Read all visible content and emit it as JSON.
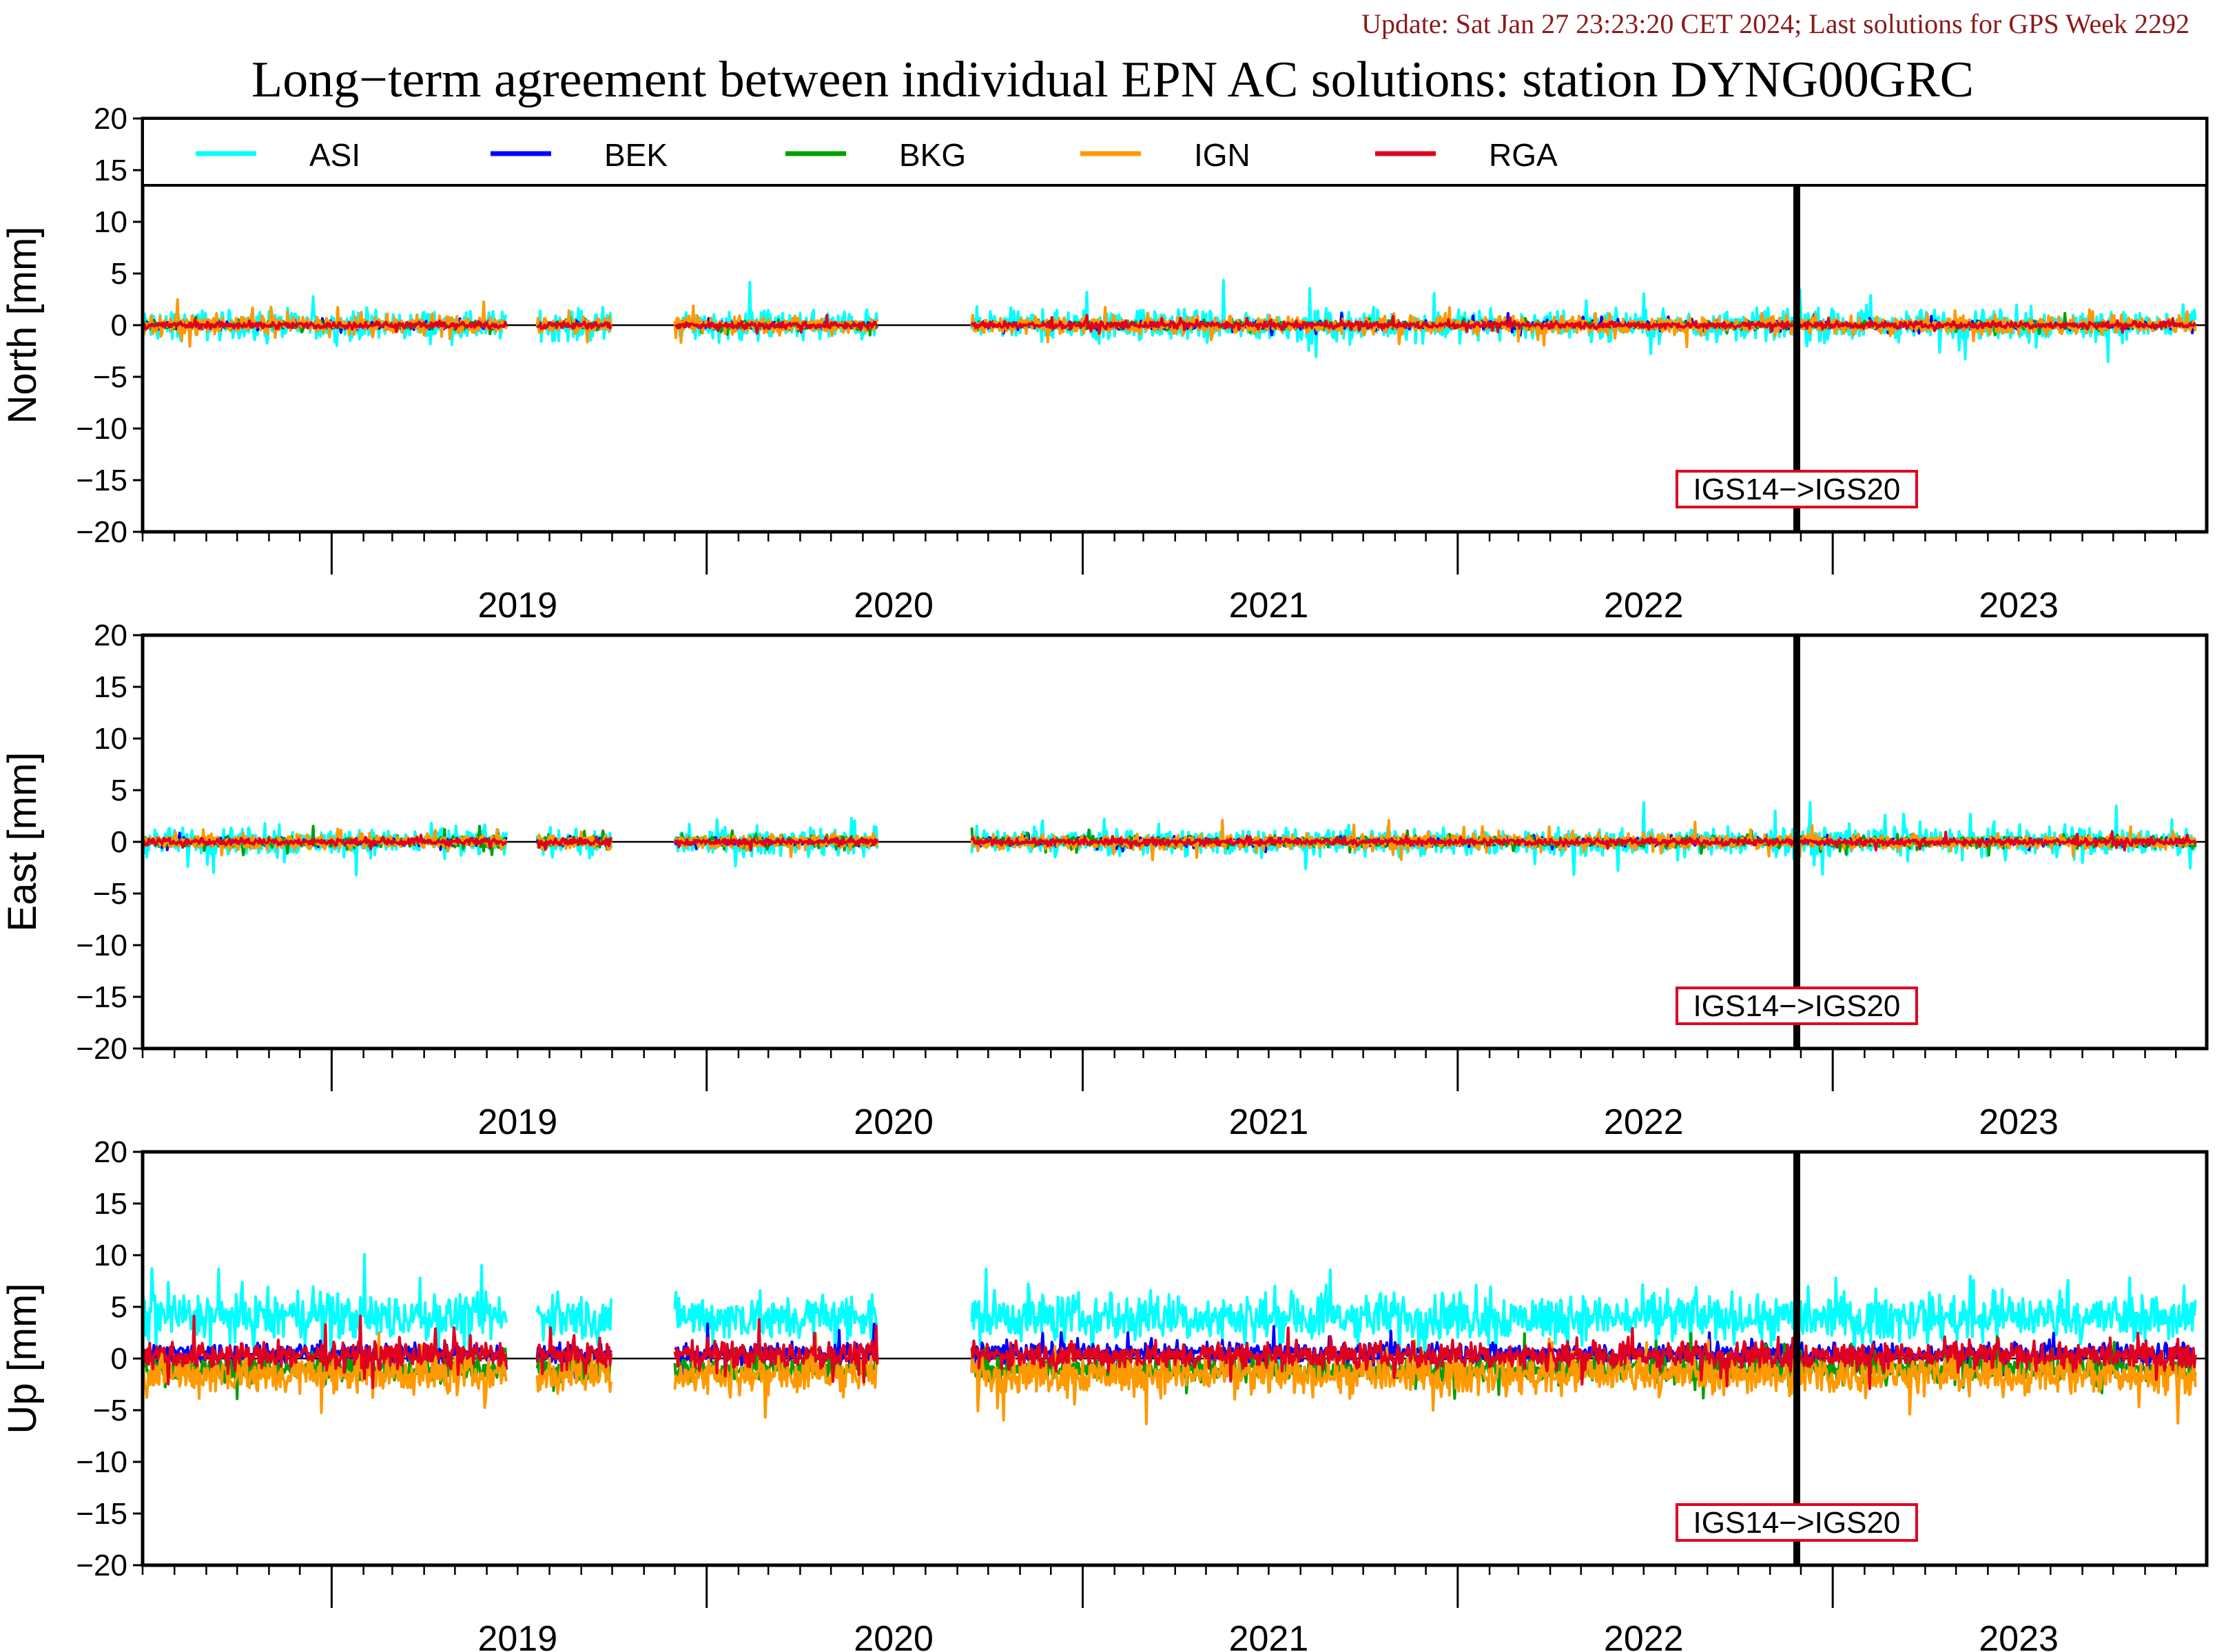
{
  "header": {
    "update": "Update: Sat Jan 27 23:23:20 CET 2024; Last solutions for GPS Week 2292",
    "title": "Long−term agreement between individual EPN AC solutions: station DYNG00GRC"
  },
  "chart_data": {
    "type": "line",
    "x_range": [
      "2018-07-01",
      "2023-12-31"
    ],
    "x_tick_labels": [
      "2019",
      "2020",
      "2021",
      "2022",
      "2023"
    ],
    "y_range": [
      -20,
      20
    ],
    "y_ticks": [
      -20,
      -15,
      -10,
      -5,
      0,
      5,
      10,
      15,
      20
    ],
    "y_tick_labels": [
      "−20",
      "−15",
      "−10",
      "−5",
      "0",
      "5",
      "10",
      "15",
      "20"
    ],
    "series": [
      {
        "name": "ASI",
        "color": "#00ffff"
      },
      {
        "name": "BEK",
        "color": "#0000ff"
      },
      {
        "name": "BKG",
        "color": "#00a000"
      },
      {
        "name": "IGN",
        "color": "#ff9900"
      },
      {
        "name": "RGA",
        "color": "#e00020"
      }
    ],
    "data_segments": [
      [
        "2018-07-01",
        "2019-06-20"
      ],
      [
        "2019-07-20",
        "2019-09-30"
      ],
      [
        "2019-12-01",
        "2020-06-15"
      ],
      [
        "2020-09-15",
        "2023-12-20"
      ]
    ],
    "event": {
      "date": "2022-11-27",
      "label": "IGS14−>IGS20"
    },
    "panels": [
      {
        "ylabel": "North [mm]",
        "legend": true,
        "spread": {
          "ASI": 2.2,
          "BEK": 0.6,
          "BKG": 0.6,
          "IGN": 1.3,
          "RGA": 0.5
        }
      },
      {
        "ylabel": "East [mm]",
        "legend": false,
        "spread": {
          "ASI": 2.0,
          "BEK": 0.6,
          "BKG": 0.8,
          "IGN": 1.1,
          "RGA": 0.5
        }
      },
      {
        "ylabel": "Up [mm]",
        "legend": false,
        "spread": {
          "ASI": 3.5,
          "BEK": 1.5,
          "BKG": 1.8,
          "IGN": 3.0,
          "RGA": 2.0
        },
        "offset": {
          "ASI": 4.0,
          "BEK": 0.5,
          "BKG": -1.0,
          "IGN": -1.5,
          "RGA": 0.3
        }
      }
    ]
  }
}
